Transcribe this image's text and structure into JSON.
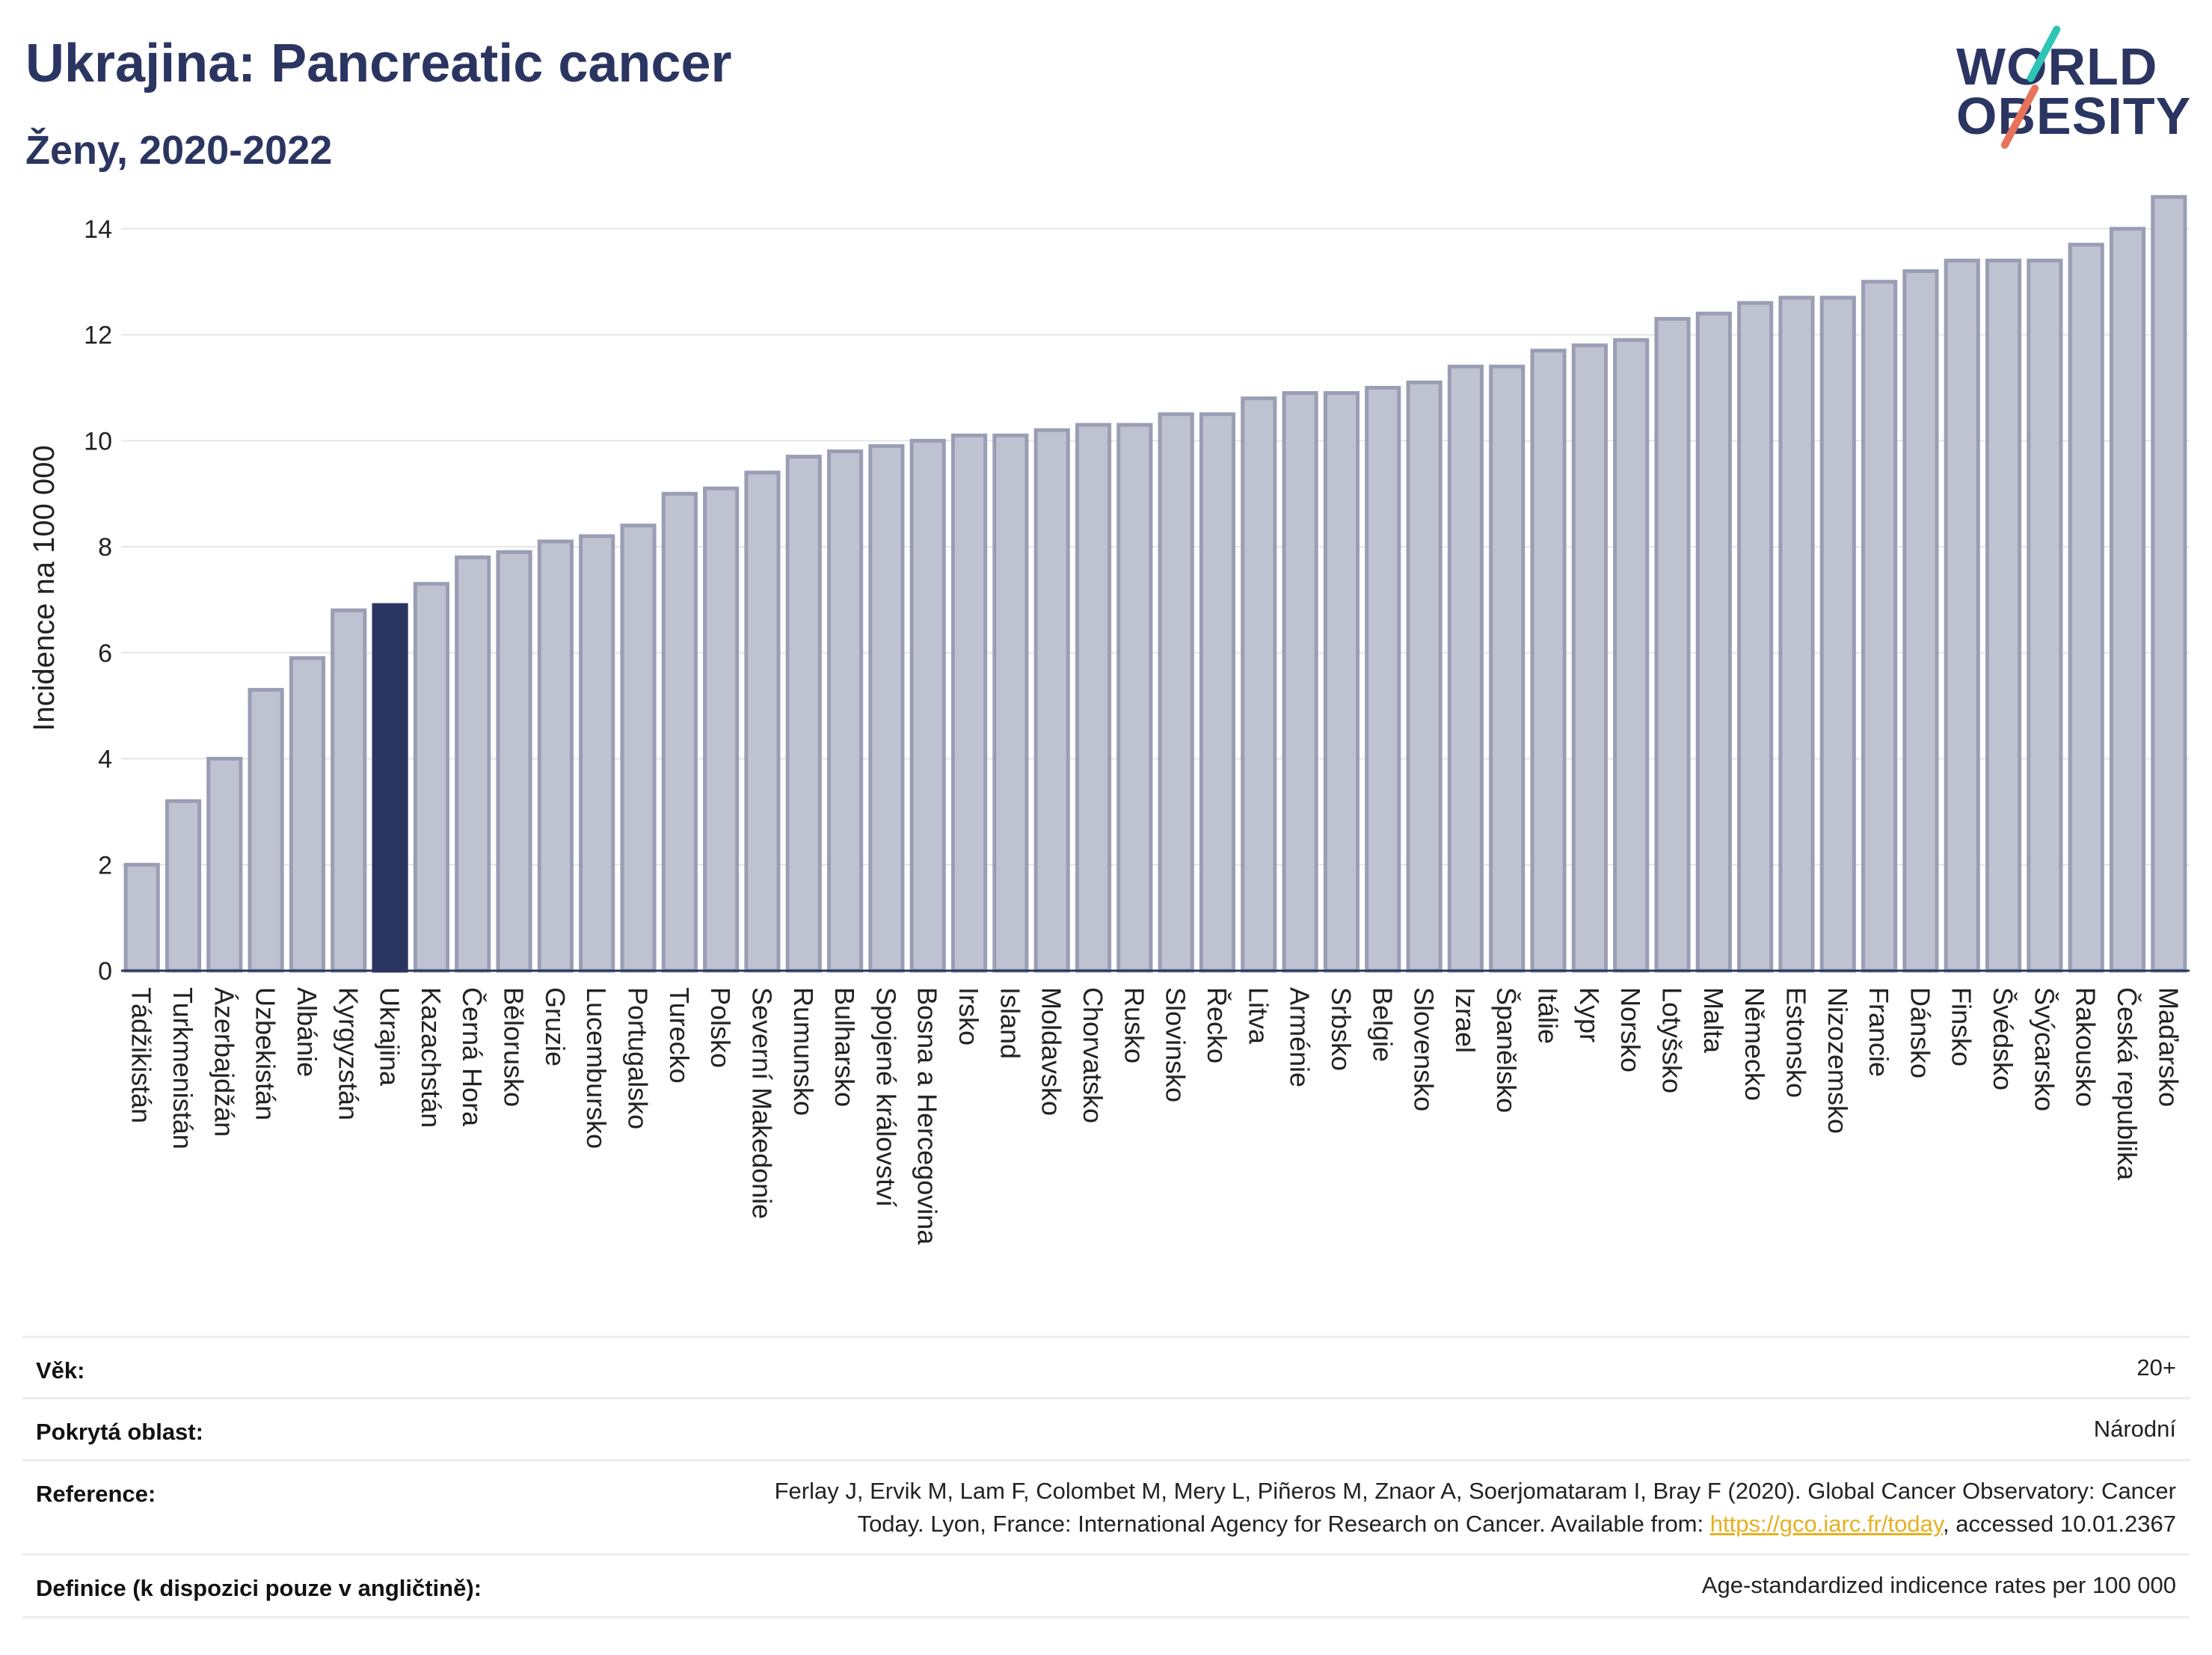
{
  "header": {
    "title": "Ukrajina: Pancreatic cancer",
    "subtitle": "Ženy, 2020-2022"
  },
  "logo": {
    "line1": "WORLD",
    "line2": "OBESITY"
  },
  "colors": {
    "highlight": "#2b3561",
    "bar_fill": "#bfc2d0",
    "bar_stroke": "#9a9eb4",
    "accent_teal": "#2ec4b6",
    "accent_coral": "#e8735a"
  },
  "chart_data": {
    "type": "bar",
    "ylabel": "Incidence na 100 000",
    "xlabel": "",
    "ylim": [
      0,
      15
    ],
    "yticks": [
      0,
      2,
      4,
      6,
      8,
      10,
      12,
      14
    ],
    "grid": true,
    "highlight": "Ukrajina",
    "categories": [
      "Tádžikistán",
      "Turkmenistán",
      "Ázerbajdžán",
      "Uzbekistán",
      "Albánie",
      "Kyrgyzstán",
      "Ukrajina",
      "Kazachstán",
      "Černá Hora",
      "Bělorusko",
      "Gruzie",
      "Lucembursko",
      "Portugalsko",
      "Turecko",
      "Polsko",
      "Severní Makedonie",
      "Rumunsko",
      "Bulharsko",
      "Spojené království",
      "Bosna a Hercegovina",
      "Irsko",
      "Island",
      "Moldavsko",
      "Chorvatsko",
      "Rusko",
      "Slovinsko",
      "Řecko",
      "Litva",
      "Arménie",
      "Srbsko",
      "Belgie",
      "Slovensko",
      "Izrael",
      "Španělsko",
      "Itálie",
      "Kypr",
      "Norsko",
      "Lotyšsko",
      "Malta",
      "Německo",
      "Estonsko",
      "Nizozemsko",
      "Francie",
      "Dánsko",
      "Finsko",
      "Švédsko",
      "Švýcarsko",
      "Rakousko",
      "Česká republika",
      "Maďarsko"
    ],
    "values": [
      2.0,
      3.2,
      4.0,
      5.3,
      5.9,
      6.8,
      6.9,
      7.3,
      7.8,
      7.9,
      8.1,
      8.2,
      8.4,
      9.0,
      9.1,
      9.4,
      9.7,
      9.8,
      9.9,
      10.0,
      10.1,
      10.1,
      10.2,
      10.3,
      10.3,
      10.5,
      10.5,
      10.8,
      10.9,
      10.9,
      11.0,
      11.1,
      11.4,
      11.4,
      11.7,
      11.8,
      11.9,
      12.3,
      12.4,
      12.6,
      12.7,
      12.7,
      13.0,
      13.2,
      13.4,
      13.4,
      13.4,
      13.7,
      14.0,
      14.6
    ]
  },
  "info": {
    "age_label": "Věk:",
    "age_value": "20+",
    "area_label": "Pokrytá oblast:",
    "area_value": "Národní",
    "ref_label": "Reference:",
    "ref_line1": "Ferlay J, Ervik M, Lam F, Colombet M, Mery L, Piñeros M, Znaor A, Soerjomataram I, Bray F (2020). Global Cancer Observatory: Cancer",
    "ref_line2_pre": "Today. Lyon, France: International Agency for Research on Cancer. Available from: ",
    "ref_link": "https://gco.iarc.fr/today",
    "ref_line2_post": ", accessed 10.01.2367",
    "def_label": "Definice (k dispozici pouze v angličtině):",
    "def_value": "Age-standardized indicence rates per 100 000"
  }
}
